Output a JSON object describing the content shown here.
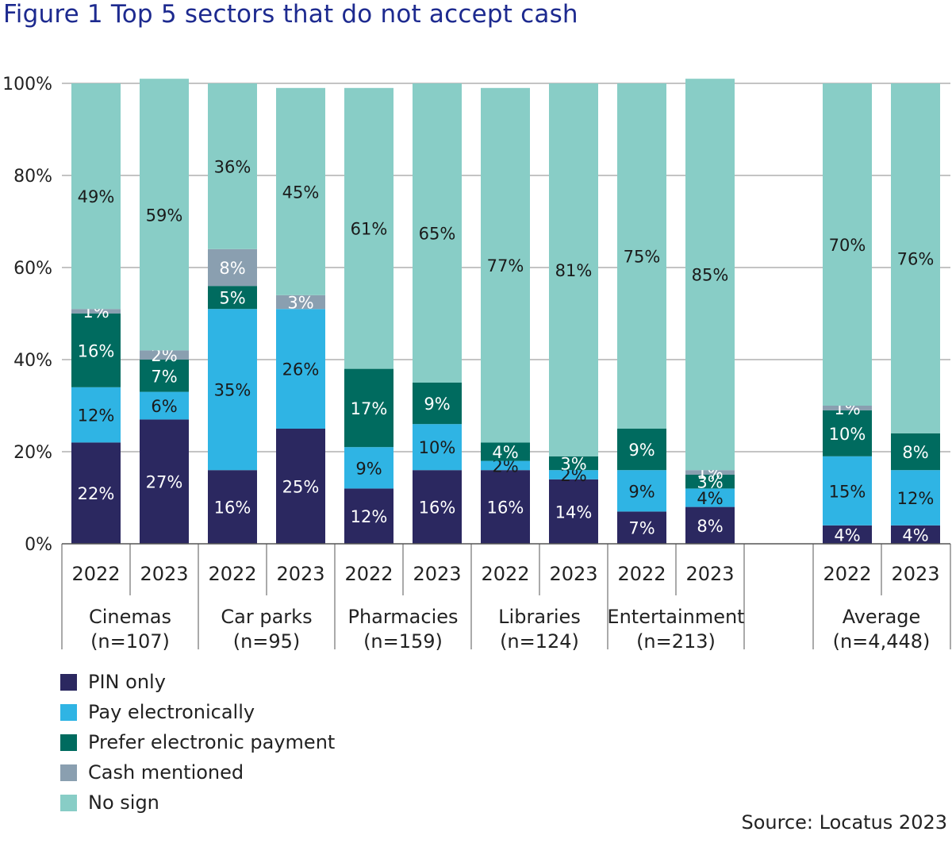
{
  "title": "Figure 1  Top 5 sectors that do not accept cash",
  "source": "Source: Locatus 2023",
  "colors": {
    "PIN only": "#2b2860",
    "Pay electronically": "#2fb4e4",
    "Prefer electronic payment": "#006b5f",
    "Cash mentioned": "#8a9fb0",
    "No sign": "#88cdc6"
  },
  "chart_data": {
    "type": "bar",
    "stacked": true,
    "ylim": [
      0,
      100
    ],
    "yticks": [
      "0%",
      "20%",
      "40%",
      "60%",
      "80%",
      "100%"
    ],
    "grid": true,
    "legend_position": "bottom-left",
    "series_names": [
      "PIN only",
      "Pay electronically",
      "Prefer electronic payment",
      "Cash mentioned",
      "No sign"
    ],
    "groups": [
      {
        "name": "Cinemas",
        "n": "(n=107)",
        "bars": [
          {
            "year": "2022",
            "values": [
              22,
              12,
              16,
              1,
              49
            ],
            "labels": [
              "22%",
              "12%",
              "16%",
              "1%",
              "49%"
            ]
          },
          {
            "year": "2023",
            "values": [
              27,
              6,
              7,
              2,
              59
            ],
            "labels": [
              "27%",
              "6%",
              "7%",
              "2%",
              "59%"
            ]
          }
        ]
      },
      {
        "name": "Car parks",
        "n": "(n=95)",
        "bars": [
          {
            "year": "2022",
            "values": [
              16,
              35,
              5,
              8,
              36
            ],
            "labels": [
              "16%",
              "35%",
              "5%",
              "8%",
              "36%"
            ]
          },
          {
            "year": "2023",
            "values": [
              25,
              26,
              0,
              3,
              45
            ],
            "labels": [
              "25%",
              "26%",
              "",
              "3%",
              "45%"
            ]
          }
        ]
      },
      {
        "name": "Pharmacies",
        "n": "(n=159)",
        "bars": [
          {
            "year": "2022",
            "values": [
              12,
              9,
              17,
              0,
              61
            ],
            "labels": [
              "12%",
              "9%",
              "17%",
              "",
              "61%"
            ]
          },
          {
            "year": "2023",
            "values": [
              16,
              10,
              9,
              0,
              65
            ],
            "labels": [
              "16%",
              "10%",
              "9%",
              "",
              "65%"
            ]
          }
        ]
      },
      {
        "name": "Libraries",
        "n": "(n=124)",
        "bars": [
          {
            "year": "2022",
            "values": [
              16,
              2,
              4,
              0,
              77
            ],
            "labels": [
              "16%",
              "2%",
              "4%",
              "",
              "77%"
            ]
          },
          {
            "year": "2023",
            "values": [
              14,
              2,
              3,
              0,
              81
            ],
            "labels": [
              "14%",
              "2%",
              "3%",
              "",
              "81%"
            ]
          }
        ]
      },
      {
        "name": "Entertainment",
        "n": "(n=213)",
        "bars": [
          {
            "year": "2022",
            "values": [
              7,
              9,
              9,
              0,
              75
            ],
            "labels": [
              "7%",
              "9%",
              "9%",
              "",
              "75%"
            ]
          },
          {
            "year": "2023",
            "values": [
              8,
              4,
              3,
              1,
              85
            ],
            "labels": [
              "8%",
              "4%",
              "3%",
              "1%",
              "85%"
            ]
          }
        ]
      },
      {
        "name": "Average",
        "n": "(n=4,448)",
        "bars": [
          {
            "year": "2022",
            "values": [
              4,
              15,
              10,
              1,
              70
            ],
            "labels": [
              "4%",
              "15%",
              "10%",
              "1%",
              "70%"
            ]
          },
          {
            "year": "2023",
            "values": [
              4,
              12,
              8,
              0,
              76
            ],
            "labels": [
              "4%",
              "12%",
              "8%",
              "",
              "76%"
            ]
          }
        ]
      }
    ]
  }
}
